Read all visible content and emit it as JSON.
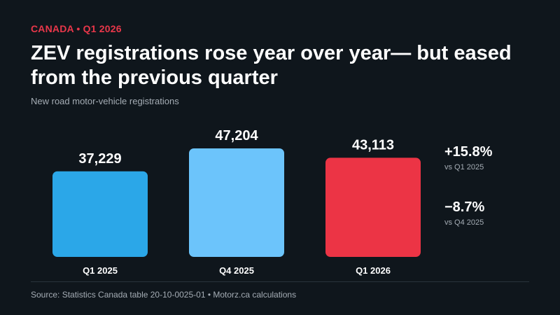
{
  "header": {
    "kicker": "CANADA • Q1 2026",
    "title": "ZEV registrations rose year over year— but eased from the previous quarter",
    "subtitle": "New road motor-vehicle registrations"
  },
  "chart_data": {
    "type": "bar",
    "categories": [
      "Q1 2025",
      "Q4 2025",
      "Q1 2026"
    ],
    "values": [
      37229,
      47204,
      43113
    ],
    "value_labels": [
      "37,229",
      "47,204",
      "43,113"
    ],
    "colors": [
      "#2ba7e8",
      "#6cc4fb",
      "#ec3445"
    ],
    "title": "",
    "xlabel": "",
    "ylabel": "",
    "grid": false,
    "axis_visible": false
  },
  "changes": [
    {
      "value": "+15.8%",
      "label": "vs Q1 2025"
    },
    {
      "value": "−8.7%",
      "label": "vs Q4 2025"
    }
  ],
  "footer": {
    "source": "Source: Statistics Canada table 20-10-0025-01 • Motorz.ca calculations"
  }
}
